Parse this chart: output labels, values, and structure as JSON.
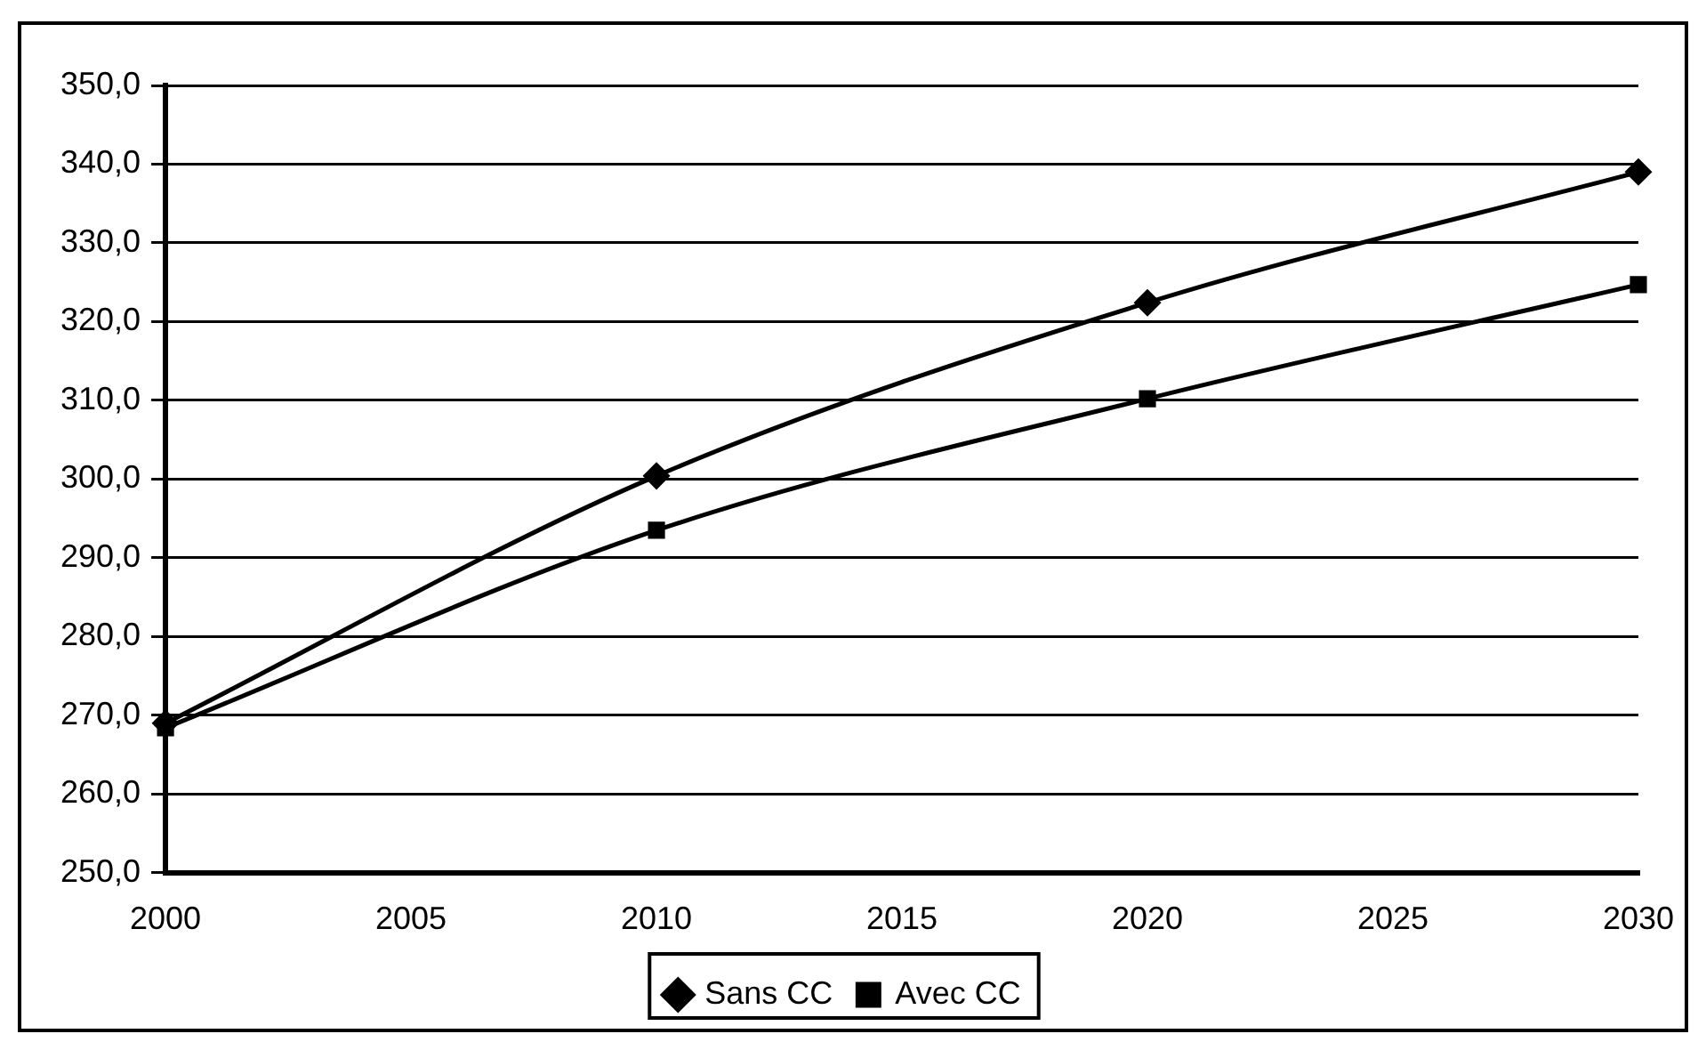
{
  "chart_data": {
    "type": "line",
    "x": [
      2000,
      2010,
      2020,
      2030
    ],
    "series": [
      {
        "name": "Sans CC",
        "color": "#000000",
        "marker": "diamond",
        "values": [
          269.0,
          300.4,
          322.4,
          339.0
        ]
      },
      {
        "name": "Avec CC",
        "color": "#000000",
        "marker": "square",
        "values": [
          268.4,
          293.5,
          310.2,
          324.7
        ]
      }
    ],
    "xlim": [
      2000,
      2030
    ],
    "xticks": [
      2000,
      2005,
      2010,
      2015,
      2020,
      2025,
      2030
    ],
    "ylim": [
      250,
      350
    ],
    "yticks": [
      {
        "value": 250,
        "label": "250,0"
      },
      {
        "value": 260,
        "label": "260,0"
      },
      {
        "value": 270,
        "label": "270,0"
      },
      {
        "value": 280,
        "label": "280,0"
      },
      {
        "value": 290,
        "label": "290,0"
      },
      {
        "value": 300,
        "label": "300,0"
      },
      {
        "value": 310,
        "label": "310,0"
      },
      {
        "value": 320,
        "label": "320,0"
      },
      {
        "value": 330,
        "label": "330,0"
      },
      {
        "value": 340,
        "label": "340,0"
      },
      {
        "value": 350,
        "label": "350,0"
      }
    ],
    "grid": "y",
    "legend": "bottom",
    "line_style": "solid"
  }
}
